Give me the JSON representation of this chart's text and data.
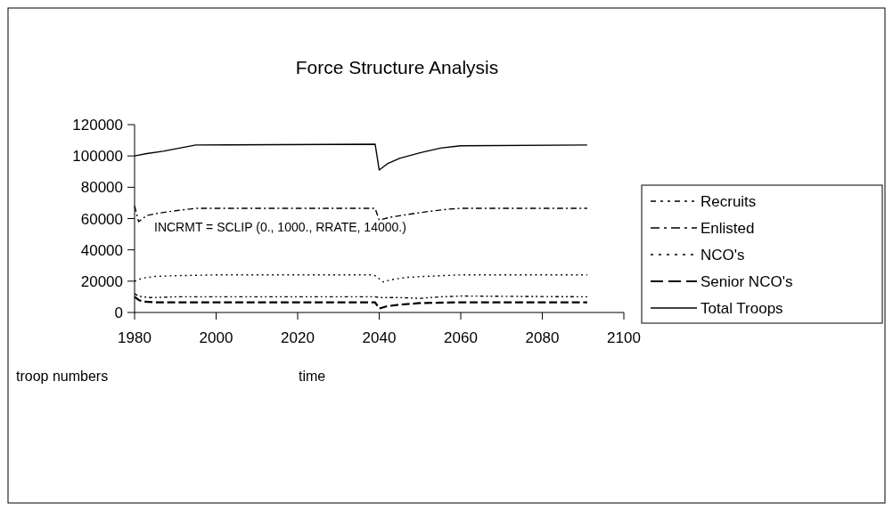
{
  "chart_data": {
    "type": "line",
    "title": "Force Structure Analysis",
    "xlabel": "time",
    "ylabel": "troop numbers",
    "annotations": [
      "INCRMT = SCLIP (0., 1000., RRATE, 14000.)"
    ],
    "xlim": [
      1980,
      2100
    ],
    "xticks": [
      1980,
      2000,
      2020,
      2040,
      2060,
      2080,
      2100
    ],
    "ylim": [
      0,
      120000
    ],
    "yticks": [
      0,
      20000,
      40000,
      60000,
      80000,
      100000,
      120000
    ],
    "legend": "right",
    "marker": "none",
    "series": [
      {
        "name": "Recruits",
        "color": "#000000",
        "line_style": "dashdot2",
        "x": [
          1980,
          1981,
          1982,
          1984,
          1990,
          2000,
          2039,
          2040,
          2045,
          2050,
          2055,
          2060,
          2091
        ],
        "values": [
          12000,
          10500,
          10000,
          9500,
          10000,
          10000,
          10000,
          9500,
          9500,
          9000,
          10000,
          10500,
          10000
        ]
      },
      {
        "name": "Enlisted",
        "color": "#000000",
        "line_style": "dashdot",
        "x": [
          1980,
          1981,
          1983,
          1986,
          1990,
          1995,
          2039,
          2040,
          2043,
          2048,
          2052,
          2057,
          2060,
          2091
        ],
        "values": [
          68000,
          58000,
          62000,
          63500,
          65000,
          66500,
          66500,
          59000,
          61000,
          63000,
          64500,
          66000,
          66500,
          66500
        ]
      },
      {
        "name": "NCO's",
        "color": "#000000",
        "line_style": "dotted",
        "x": [
          1980,
          1982,
          1985,
          1990,
          2000,
          2038,
          2039,
          2041,
          2043,
          2047,
          2055,
          2060,
          2091
        ],
        "values": [
          20000,
          22000,
          23000,
          23500,
          24000,
          24000,
          23500,
          19500,
          21000,
          22500,
          23500,
          24000,
          24000
        ]
      },
      {
        "name": "Senior NCO's",
        "color": "#000000",
        "line_style": "dashed",
        "x": [
          1980,
          1981,
          1982,
          1985,
          2039,
          2040,
          2042,
          2045,
          2050,
          2060,
          2091
        ],
        "values": [
          10000,
          8000,
          7000,
          6500,
          6500,
          2500,
          4000,
          5000,
          6000,
          6500,
          6500
        ]
      },
      {
        "name": "Total Troops",
        "color": "#000000",
        "line_style": "solid",
        "x": [
          1980,
          1983,
          1987,
          1991,
          1995,
          2039,
          2040,
          2042,
          2045,
          2050,
          2055,
          2060,
          2091
        ],
        "values": [
          100000,
          101500,
          103000,
          105000,
          107000,
          107500,
          91000,
          95000,
          98500,
          102000,
          105000,
          106500,
          107000
        ]
      }
    ]
  }
}
